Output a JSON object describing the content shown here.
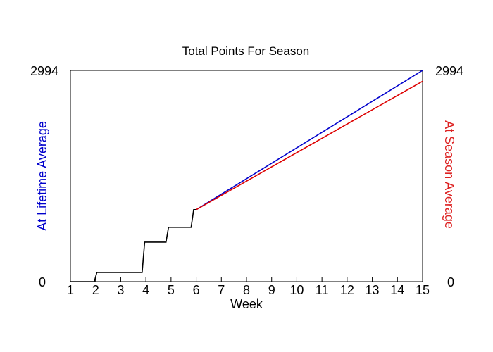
{
  "chart_data": {
    "type": "line",
    "title": "Total Points For Season",
    "xlabel": "Week",
    "ylabel_left": "At Lifetime Average",
    "ylabel_right": "At Season Average",
    "xlim": [
      1,
      15
    ],
    "ylim": [
      0,
      2994
    ],
    "x_ticks": [
      "1",
      "2",
      "3",
      "4",
      "5",
      "6",
      "7",
      "8",
      "9",
      "10",
      "11",
      "12",
      "13",
      "14",
      "15"
    ],
    "y_tick_labels_left": [
      "0",
      "2994"
    ],
    "y_tick_labels_right": [
      "0",
      "2994"
    ],
    "colors": {
      "actual": "#000000",
      "lifetime": "#0000cc",
      "season": "#dd0000",
      "left_label": "#0000cc",
      "right_label": "#dd2222"
    },
    "series": [
      {
        "values_xy": [
          [
            1,
            0
          ],
          [
            1.95,
            0
          ],
          [
            2.05,
            130
          ],
          [
            3.85,
            130
          ],
          [
            3.95,
            560
          ],
          [
            4.8,
            560
          ],
          [
            4.9,
            770
          ],
          [
            5.8,
            770
          ],
          [
            5.9,
            1020
          ],
          [
            6.0,
            1020
          ]
        ]
      },
      {
        "values_xy": [
          [
            6.0,
            1020
          ],
          [
            15,
            2994
          ]
        ]
      },
      {
        "values_xy": [
          [
            6.0,
            1020
          ],
          [
            15,
            2840
          ]
        ]
      }
    ]
  }
}
